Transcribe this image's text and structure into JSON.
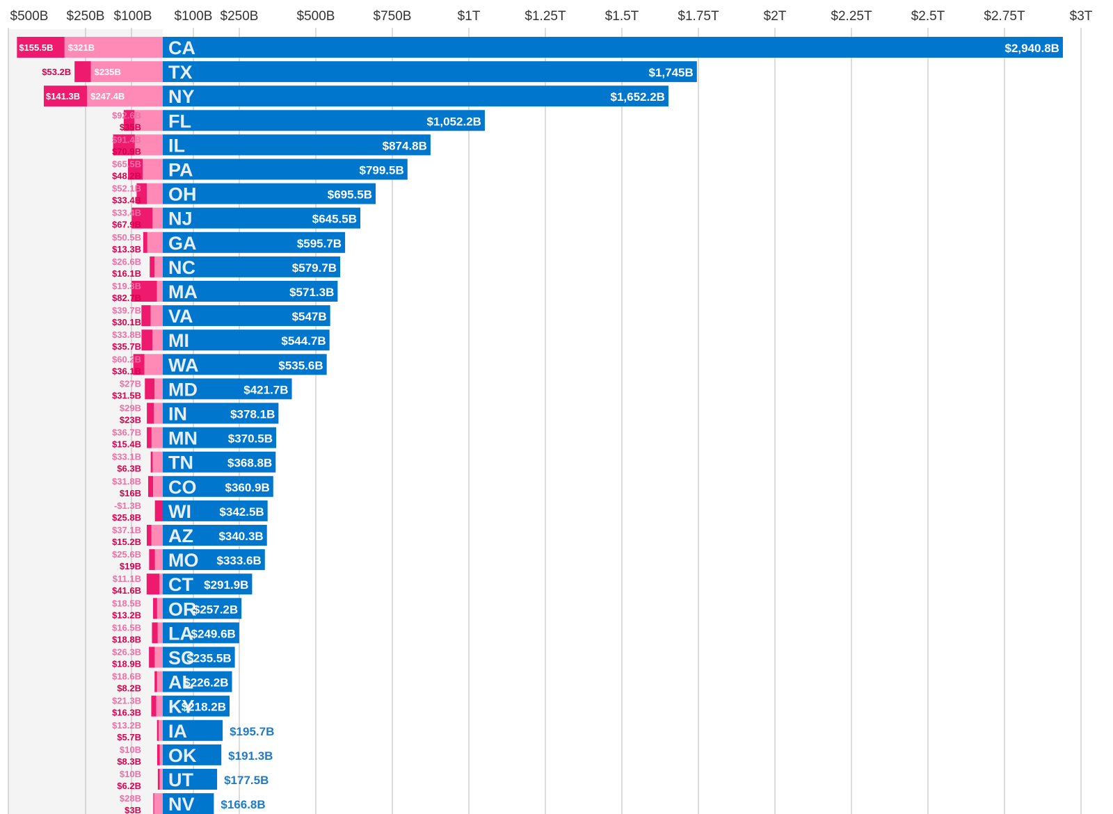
{
  "colors": {
    "gdp_bar": "#0077cc",
    "negative_light": "#ff8ab5",
    "negative_dark": "#ee1a6e",
    "grid": "#b8b8b8",
    "left_panel": "#f4f4f4"
  },
  "chart_data": {
    "type": "bar",
    "axis_ticks_negative": [
      "$500B",
      "$250B",
      "$100B"
    ],
    "axis_ticks_positive": [
      "$100B",
      "$250B",
      "$500B",
      "$750B",
      "$1T",
      "$1.25T",
      "$1.5T",
      "$1.75T",
      "$2T",
      "$2.25T",
      "$2.5T",
      "$2.75T",
      "$3T"
    ],
    "xlim": [
      0,
      3000
    ],
    "units": "billions USD",
    "rows": [
      {
        "state": "CA",
        "value": 2940.8,
        "label": "$2,940.8B",
        "light": 321,
        "light_label": "$321B",
        "dark": 155.5,
        "dark_label": "$155.5B"
      },
      {
        "state": "TX",
        "value": 1745,
        "label": "$1,745B",
        "light": 235,
        "light_label": "$235B",
        "dark": 53.2,
        "dark_label": "$53.2B"
      },
      {
        "state": "NY",
        "value": 1652.2,
        "label": "$1,652.2B",
        "light": 247.4,
        "light_label": "$247.4B",
        "dark": 141.3,
        "dark_label": "$141.3B"
      },
      {
        "state": "FL",
        "value": 1052.2,
        "label": "$1,052.2B",
        "light": 92.6,
        "light_label": "$92.6B",
        "dark": 35,
        "dark_label": "$35B"
      },
      {
        "state": "IL",
        "value": 874.8,
        "label": "$874.8B",
        "light": 91.4,
        "light_label": "$91.4B",
        "dark": 70.9,
        "dark_label": "$70.9B"
      },
      {
        "state": "PA",
        "value": 799.5,
        "label": "$799.5B",
        "light": 65.5,
        "light_label": "$65.5B",
        "dark": 48.2,
        "dark_label": "$48.2B"
      },
      {
        "state": "OH",
        "value": 695.5,
        "label": "$695.5B",
        "light": 52.1,
        "light_label": "$52.1B",
        "dark": 33.4,
        "dark_label": "$33.4B"
      },
      {
        "state": "NJ",
        "value": 645.5,
        "label": "$645.5B",
        "light": 33.4,
        "light_label": "$33.4B",
        "dark": 67.9,
        "dark_label": "$67.9B"
      },
      {
        "state": "GA",
        "value": 595.7,
        "label": "$595.7B",
        "light": 50.5,
        "light_label": "$50.5B",
        "dark": 13.3,
        "dark_label": "$13.3B"
      },
      {
        "state": "NC",
        "value": 579.7,
        "label": "$579.7B",
        "light": 26.6,
        "light_label": "$26.6B",
        "dark": 16.1,
        "dark_label": "$16.1B"
      },
      {
        "state": "MA",
        "value": 571.3,
        "label": "$571.3B",
        "light": 19.3,
        "light_label": "$19.3B",
        "dark": 82.7,
        "dark_label": "$82.7B"
      },
      {
        "state": "VA",
        "value": 547,
        "label": "$547B",
        "light": 39.7,
        "light_label": "$39.7B",
        "dark": 30.1,
        "dark_label": "$30.1B"
      },
      {
        "state": "MI",
        "value": 544.7,
        "label": "$544.7B",
        "light": 33.8,
        "light_label": "$33.8B",
        "dark": 35.7,
        "dark_label": "$35.7B"
      },
      {
        "state": "WA",
        "value": 535.6,
        "label": "$535.6B",
        "light": 60.2,
        "light_label": "$60.2B",
        "dark": 36.1,
        "dark_label": "$36.1B"
      },
      {
        "state": "MD",
        "value": 421.7,
        "label": "$421.7B",
        "light": 27,
        "light_label": "$27B",
        "dark": 31.5,
        "dark_label": "$31.5B"
      },
      {
        "state": "IN",
        "value": 378.1,
        "label": "$378.1B",
        "light": 29,
        "light_label": "$29B",
        "dark": 23,
        "dark_label": "$23B"
      },
      {
        "state": "MN",
        "value": 370.5,
        "label": "$370.5B",
        "light": 36.7,
        "light_label": "$36.7B",
        "dark": 15.4,
        "dark_label": "$15.4B"
      },
      {
        "state": "TN",
        "value": 368.8,
        "label": "$368.8B",
        "light": 33.1,
        "light_label": "$33.1B",
        "dark": 6.3,
        "dark_label": "$6.3B"
      },
      {
        "state": "CO",
        "value": 360.9,
        "label": "$360.9B",
        "light": 31.8,
        "light_label": "$31.8B",
        "dark": 16,
        "dark_label": "$16B"
      },
      {
        "state": "WI",
        "value": 342.5,
        "label": "$342.5B",
        "light": -1.3,
        "light_label": "-$1.3B",
        "dark": 25.8,
        "dark_label": "$25.8B"
      },
      {
        "state": "AZ",
        "value": 340.3,
        "label": "$340.3B",
        "light": 37.1,
        "light_label": "$37.1B",
        "dark": 15.2,
        "dark_label": "$15.2B"
      },
      {
        "state": "MO",
        "value": 333.6,
        "label": "$333.6B",
        "light": 25.6,
        "light_label": "$25.6B",
        "dark": 19,
        "dark_label": "$19B"
      },
      {
        "state": "CT",
        "value": 291.9,
        "label": "$291.9B",
        "light": 11.1,
        "light_label": "$11.1B",
        "dark": 41.6,
        "dark_label": "$41.6B"
      },
      {
        "state": "OR",
        "value": 257.2,
        "label": "$257.2B",
        "light": 18.5,
        "light_label": "$18.5B",
        "dark": 13.2,
        "dark_label": "$13.2B"
      },
      {
        "state": "LA",
        "value": 249.6,
        "label": "$249.6B",
        "light": 16.5,
        "light_label": "$16.5B",
        "dark": 18.8,
        "dark_label": "$18.8B"
      },
      {
        "state": "SC",
        "value": 235.5,
        "label": "$235.5B",
        "light": 26.3,
        "light_label": "$26.3B",
        "dark": 18.9,
        "dark_label": "$18.9B"
      },
      {
        "state": "AL",
        "value": 226.2,
        "label": "$226.2B",
        "light": 18.6,
        "light_label": "$18.6B",
        "dark": 8.2,
        "dark_label": "$8.2B"
      },
      {
        "state": "KY",
        "value": 218.2,
        "label": "$218.2B",
        "light": 21.3,
        "light_label": "$21.3B",
        "dark": 16.3,
        "dark_label": "$16.3B"
      },
      {
        "state": "IA",
        "value": 195.7,
        "label": "$195.7B",
        "light": 13.2,
        "light_label": "$13.2B",
        "dark": 5.7,
        "dark_label": "$5.7B"
      },
      {
        "state": "OK",
        "value": 191.3,
        "label": "$191.3B",
        "light": 10,
        "light_label": "$10B",
        "dark": 8.3,
        "dark_label": "$8.3B"
      },
      {
        "state": "UT",
        "value": 177.5,
        "label": "$177.5B",
        "light": 10,
        "light_label": "$10B",
        "dark": 6.2,
        "dark_label": "$6.2B"
      },
      {
        "state": "NV",
        "value": 166.8,
        "label": "$166.8B",
        "light": 28,
        "light_label": "$28B",
        "dark": 3,
        "dark_label": "$3B"
      }
    ]
  }
}
